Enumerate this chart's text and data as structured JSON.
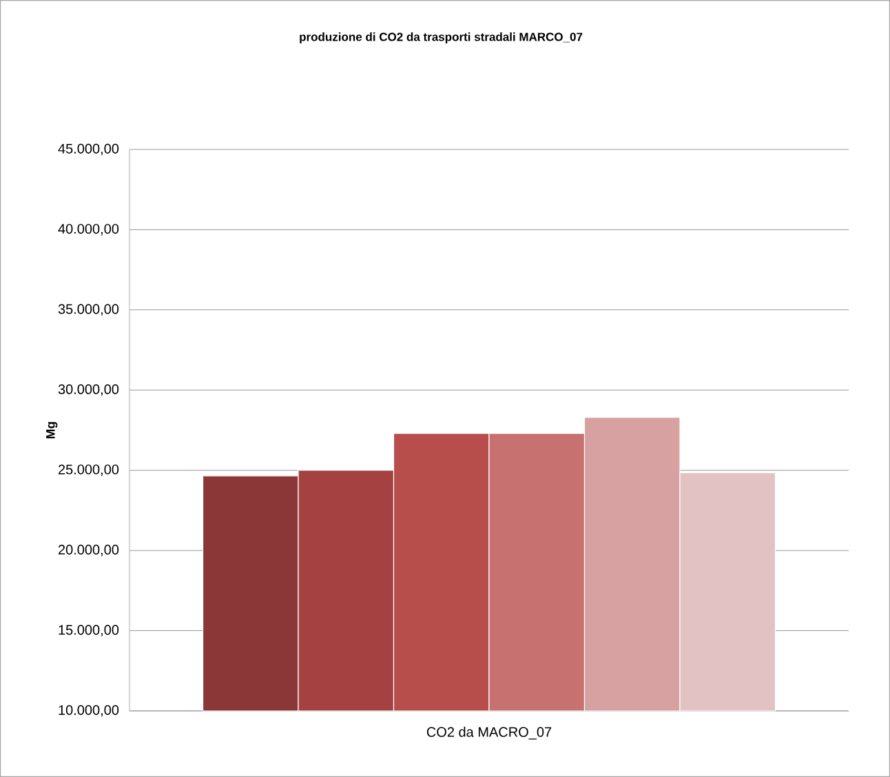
{
  "chart_data": {
    "type": "bar",
    "title": "**produzione di CO2 da trasporti stradali MARCO_07**",
    "ylabel": "**Mg**",
    "categories": [
      "CO2 da MACRO_07"
    ],
    "series": [
      {
        "color": "#8b3737",
        "values": [
          24650
        ]
      },
      {
        "color": "#a54241",
        "values": [
          25000
        ]
      },
      {
        "color": "#b74e4b",
        "values": [
          27300
        ]
      },
      {
        "color": "#c77270",
        "values": [
          27300
        ]
      },
      {
        "color": "#d7a1a1",
        "values": [
          28300
        ]
      },
      {
        "color": "#e2c2c3",
        "values": [
          24850
        ]
      }
    ],
    "ylim": [
      10000,
      45000
    ],
    "yticks": [
      {
        "value": 10000,
        "label": "10.000,00"
      },
      {
        "value": 15000,
        "label": "15.000,00"
      },
      {
        "value": 20000,
        "label": "20.000,00"
      },
      {
        "value": 25000,
        "label": "25.000,00"
      },
      {
        "value": 30000,
        "label": "30.000,00"
      },
      {
        "value": 35000,
        "label": "35.000,00"
      },
      {
        "value": 40000,
        "label": "40.000,00"
      },
      {
        "value": 45000,
        "label": "45.000,00"
      }
    ],
    "grid": "y"
  }
}
